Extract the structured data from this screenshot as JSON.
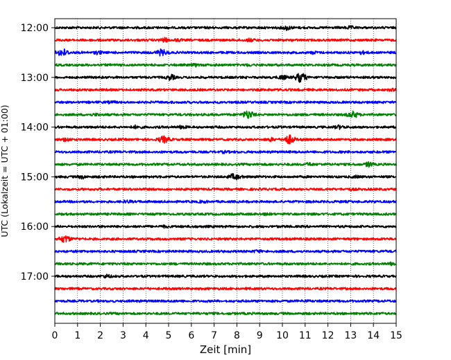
{
  "chart_data": {
    "type": "line",
    "subtype": "helicorder",
    "xlabel": "Zeit  [min]",
    "ylabel": "UTC (Lokalzeit = UTC + 01:00)",
    "xlim": [
      0,
      15
    ],
    "x_ticks": [
      "0",
      "1",
      "2",
      "3",
      "4",
      "5",
      "6",
      "7",
      "8",
      "9",
      "10",
      "11",
      "12",
      "13",
      "14",
      "15"
    ],
    "y_tick_labels": [
      "12:00",
      "13:00",
      "14:00",
      "15:00",
      "16:00",
      "17:00"
    ],
    "grid": "vertical dotted at each minute",
    "trace_interval_minutes": 15,
    "color_cycle": [
      "#000000",
      "#ff0000",
      "#0000ff",
      "#008000"
    ],
    "traces": [
      {
        "start": "12:00",
        "color": "#000000",
        "events": [
          {
            "t": 10.2,
            "amp": 1.6
          },
          {
            "t": 13.0,
            "amp": 0.8
          }
        ]
      },
      {
        "start": "12:15",
        "color": "#ff0000",
        "events": [
          {
            "t": 4.8,
            "amp": 1.4
          },
          {
            "t": 5.4,
            "amp": 0.9
          },
          {
            "t": 8.6,
            "amp": 0.9
          }
        ]
      },
      {
        "start": "12:30",
        "color": "#0000ff",
        "events": [
          {
            "t": 0.35,
            "amp": 3.0
          },
          {
            "t": 1.9,
            "amp": 1.0
          },
          {
            "t": 4.7,
            "amp": 2.2
          },
          {
            "t": 11.4,
            "amp": 0.7
          },
          {
            "t": 13.5,
            "amp": 1.2
          }
        ]
      },
      {
        "start": "12:45",
        "color": "#008000",
        "events": [
          {
            "t": 6.2,
            "amp": 0.8
          },
          {
            "t": 8.5,
            "amp": 0.6
          }
        ]
      },
      {
        "start": "13:00",
        "color": "#000000",
        "events": [
          {
            "t": 5.1,
            "amp": 2.0
          },
          {
            "t": 10.0,
            "amp": 1.5
          },
          {
            "t": 10.8,
            "amp": 3.6
          }
        ]
      },
      {
        "start": "13:15",
        "color": "#ff0000",
        "events": [
          {
            "t": 14.8,
            "amp": 0.6
          }
        ]
      },
      {
        "start": "13:30",
        "color": "#0000ff",
        "events": [
          {
            "t": 2.5,
            "amp": 0.5
          }
        ]
      },
      {
        "start": "13:45",
        "color": "#008000",
        "events": [
          {
            "t": 1.8,
            "amp": 0.8
          },
          {
            "t": 8.5,
            "amp": 3.2
          },
          {
            "t": 13.1,
            "amp": 2.2
          }
        ]
      },
      {
        "start": "14:00",
        "color": "#000000",
        "events": [
          {
            "t": 3.6,
            "amp": 1.0
          },
          {
            "t": 5.6,
            "amp": 1.0
          },
          {
            "t": 12.5,
            "amp": 1.2
          }
        ]
      },
      {
        "start": "14:15",
        "color": "#ff0000",
        "events": [
          {
            "t": 0.5,
            "amp": 1.5
          },
          {
            "t": 4.8,
            "amp": 2.6
          },
          {
            "t": 9.5,
            "amp": 1.2
          },
          {
            "t": 10.3,
            "amp": 3.4
          }
        ]
      },
      {
        "start": "14:30",
        "color": "#0000ff",
        "events": [
          {
            "t": 7.5,
            "amp": 0.6
          }
        ]
      },
      {
        "start": "14:45",
        "color": "#008000",
        "events": [
          {
            "t": 11.2,
            "amp": 0.9
          },
          {
            "t": 13.8,
            "amp": 2.0
          }
        ]
      },
      {
        "start": "15:00",
        "color": "#000000",
        "events": [
          {
            "t": 1.2,
            "amp": 1.2
          },
          {
            "t": 7.9,
            "amp": 2.2
          },
          {
            "t": 13.3,
            "amp": 0.6
          }
        ]
      },
      {
        "start": "15:15",
        "color": "#ff0000",
        "events": [
          {
            "t": 13.0,
            "amp": 0.5
          }
        ]
      },
      {
        "start": "15:30",
        "color": "#0000ff",
        "events": [
          {
            "t": 3.2,
            "amp": 0.7
          },
          {
            "t": 6.5,
            "amp": 0.6
          }
        ]
      },
      {
        "start": "15:45",
        "color": "#008000",
        "events": [
          {
            "t": 9.3,
            "amp": 0.5
          }
        ]
      },
      {
        "start": "16:00",
        "color": "#000000",
        "events": [
          {
            "t": 4.8,
            "amp": 0.7
          }
        ]
      },
      {
        "start": "16:15",
        "color": "#ff0000",
        "events": [
          {
            "t": 0.45,
            "amp": 2.6
          }
        ]
      },
      {
        "start": "16:30",
        "color": "#0000ff",
        "events": [
          {
            "t": 8.9,
            "amp": 0.7
          }
        ]
      },
      {
        "start": "16:45",
        "color": "#008000",
        "events": [
          {
            "t": 14.8,
            "amp": 0.9
          }
        ]
      },
      {
        "start": "17:00",
        "color": "#000000",
        "events": [
          {
            "t": 2.3,
            "amp": 1.3
          }
        ]
      },
      {
        "start": "17:15",
        "color": "#ff0000",
        "events": []
      },
      {
        "start": "17:30",
        "color": "#0000ff",
        "events": [
          {
            "t": 11.0,
            "amp": 0.5
          }
        ]
      },
      {
        "start": "17:45",
        "color": "#008000",
        "events": []
      }
    ]
  }
}
